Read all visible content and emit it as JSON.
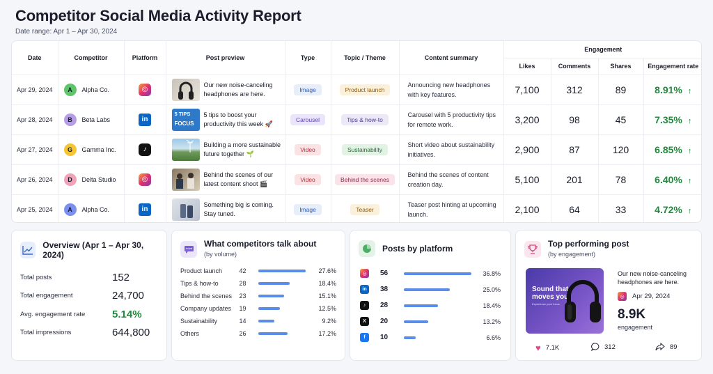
{
  "header": {
    "title": "Competitor Social Media Activity Report",
    "date_range": "Date range: Apr 1 – Apr 30, 2024"
  },
  "table": {
    "columns": {
      "date": "Date",
      "competitor": "Competitor",
      "platform": "Platform",
      "post_preview": "Post preview",
      "type": "Type",
      "topic": "Topic / Theme",
      "summary": "Content summary",
      "engagement": "Engagement",
      "likes": "Likes",
      "comments": "Comments",
      "shares": "Shares",
      "rate": "Engagement rate"
    },
    "rows": [
      {
        "date": "Apr 29, 2024",
        "initial": "A",
        "avatar_color": "#5fc46a",
        "competitor": "Alpha Co.",
        "platform_icon": "instagram-icon",
        "preview": "Our new noise-canceling headphones are here.",
        "type": "Image",
        "type_bg": "#e6edfb",
        "type_fg": "#2f5bb8",
        "topic": "Product launch",
        "topic_bg": "#fbf0d9",
        "topic_fg": "#8a5a10",
        "summary": "Announcing new headphones with key features.",
        "likes": "7,100",
        "comments": "312",
        "shares": "89",
        "rate": "8.91%"
      },
      {
        "date": "Apr 28, 2024",
        "initial": "B",
        "avatar_color": "#b79ce8",
        "competitor": "Beta Labs",
        "platform_icon": "linkedin-icon",
        "preview": "5 tips to boost your productivity this week 🚀",
        "thumb_line1": "5 TIPS",
        "thumb_line2": "FOCUS",
        "type": "Carousel",
        "type_bg": "#ebe5fb",
        "type_fg": "#5a3fb0",
        "topic": "Tips & how-to",
        "topic_bg": "#ece8f8",
        "topic_fg": "#4a3a8a",
        "summary": "Carousel with 5 productivity tips for remote work.",
        "likes": "3,200",
        "comments": "98",
        "shares": "45",
        "rate": "7.35%"
      },
      {
        "date": "Apr 27, 2024",
        "initial": "G",
        "avatar_color": "#f5c634",
        "competitor": "Gamma Inc.",
        "platform_icon": "tiktok-icon",
        "preview": "Building a more sustainable future together 🌱",
        "type": "Video",
        "type_bg": "#fbe2e4",
        "type_fg": "#b2323d",
        "topic": "Sustainability",
        "topic_bg": "#e2f3e5",
        "topic_fg": "#2a6a35",
        "summary": "Short video about sustainability initiatives.",
        "likes": "2,900",
        "comments": "87",
        "shares": "120",
        "rate": "6.85%"
      },
      {
        "date": "Apr 26, 2024",
        "initial": "D",
        "avatar_color": "#f0a3b8",
        "competitor": "Delta Studio",
        "platform_icon": "instagram-icon",
        "preview": "Behind the scenes of our latest content shoot 🎬",
        "type": "Video",
        "type_bg": "#fbe2e4",
        "type_fg": "#b2323d",
        "topic": "Behind the scenes",
        "topic_bg": "#fbe3ea",
        "topic_fg": "#8a2a4a",
        "summary": "Behind the scenes of content creation day.",
        "likes": "5,100",
        "comments": "201",
        "shares": "78",
        "rate": "6.40%"
      },
      {
        "date": "Apr 25, 2024",
        "initial": "A",
        "avatar_color": "#7b8ff0",
        "competitor": "Alpha Co.",
        "platform_icon": "linkedin-icon",
        "preview": "Something big is coming. Stay tuned.",
        "type": "Image",
        "type_bg": "#e6edfb",
        "type_fg": "#2f5bb8",
        "topic": "Teaser",
        "topic_bg": "#fbf0d9",
        "topic_fg": "#8a5a10",
        "summary": "Teaser post hinting at upcoming launch.",
        "likes": "2,100",
        "comments": "64",
        "shares": "33",
        "rate": "4.72%"
      }
    ]
  },
  "overview": {
    "title": "Overview (Apr 1 – Apr 30, 2024)",
    "rows": [
      {
        "label": "Total posts",
        "value": "152",
        "green": false
      },
      {
        "label": "Total engagement",
        "value": "24,700",
        "green": false
      },
      {
        "label": "Avg. engagement rate",
        "value": "5.14%",
        "green": true
      },
      {
        "label": "Total impressions",
        "value": "644,800",
        "green": false
      }
    ]
  },
  "topics": {
    "title": "What competitors talk about",
    "subtitle": "(by volume)",
    "rows": [
      {
        "label": "Product launch",
        "count": "42",
        "pct": "27.6%",
        "fraction": 0.276
      },
      {
        "label": "Tips & how-to",
        "count": "28",
        "pct": "18.4%",
        "fraction": 0.184
      },
      {
        "label": "Behind the scenes",
        "count": "23",
        "pct": "15.1%",
        "fraction": 0.151
      },
      {
        "label": "Company updates",
        "count": "19",
        "pct": "12.5%",
        "fraction": 0.125
      },
      {
        "label": "Sustainability",
        "count": "14",
        "pct": "9.2%",
        "fraction": 0.092
      },
      {
        "label": "Others",
        "count": "26",
        "pct": "17.2%",
        "fraction": 0.172
      }
    ]
  },
  "platforms": {
    "title": "Posts by platform",
    "rows": [
      {
        "icon": "instagram-icon",
        "count": "56",
        "pct": "36.8%",
        "fraction": 0.368
      },
      {
        "icon": "linkedin-icon",
        "count": "38",
        "pct": "25.0%",
        "fraction": 0.25
      },
      {
        "icon": "tiktok-icon",
        "count": "28",
        "pct": "18.4%",
        "fraction": 0.184
      },
      {
        "icon": "x-icon",
        "count": "20",
        "pct": "13.2%",
        "fraction": 0.132
      },
      {
        "icon": "facebook-icon",
        "count": "10",
        "pct": "6.6%",
        "fraction": 0.066
      }
    ]
  },
  "top_post": {
    "title": "Top performing post",
    "subtitle": "(by engagement)",
    "image_text": "Sound that moves you",
    "image_subtext": "Experience pure focus.",
    "caption": "Our new noise-canceling headphones are here.",
    "date": "Apr 29, 2024",
    "engagement_value": "8.9K",
    "engagement_label": "engagement",
    "likes": "7.1K",
    "comments": "312",
    "shares": "89"
  }
}
